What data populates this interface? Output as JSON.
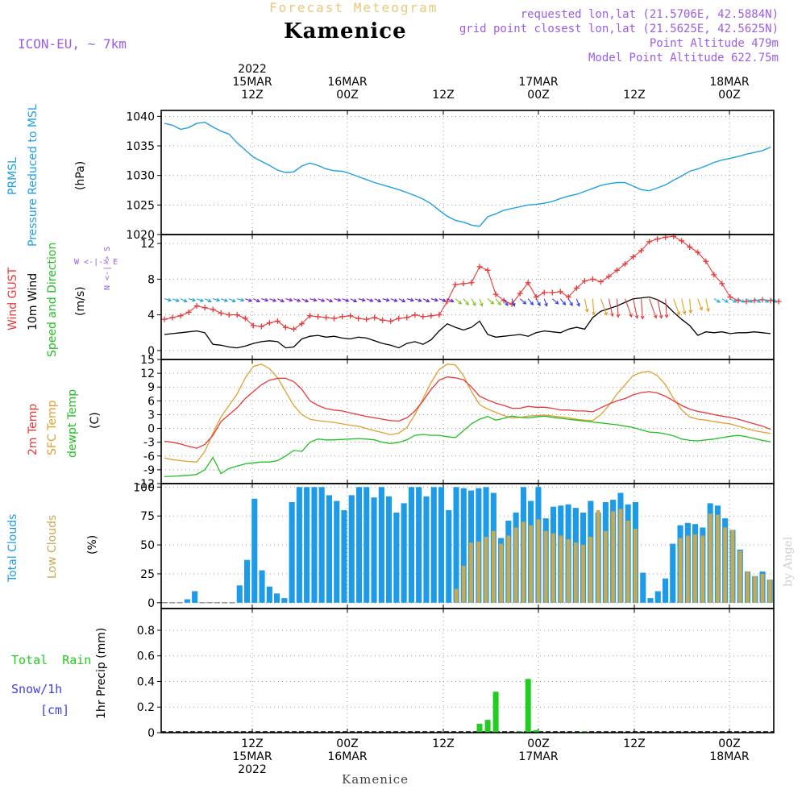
{
  "header": {
    "subtitle": "Forecast Meteogram",
    "title": "Kamenice",
    "model": "ICON-EU, ~ 7km",
    "requested": "requested lon,lat (21.5706E, 42.5884N)",
    "gridpoint": "grid point closest lon,lat (21.5625E, 42.5625N)",
    "point_alt": "Point Altitude 479m",
    "model_alt": "Model Point Altitude 622.75m"
  },
  "footer": {
    "location": "Kamenice",
    "credit": "by Angel"
  },
  "top_axis": [
    {
      "line1": "2022",
      "line2": "15MAR",
      "line3": "12Z"
    },
    {
      "line1": "",
      "line2": "16MAR",
      "line3": "00Z"
    },
    {
      "line1": "",
      "line2": "",
      "line3": "12Z"
    },
    {
      "line1": "",
      "line2": "17MAR",
      "line3": "00Z"
    },
    {
      "line1": "",
      "line2": "",
      "line3": "12Z"
    },
    {
      "line1": "",
      "line2": "18MAR",
      "line3": "00Z"
    }
  ],
  "bottom_axis": [
    {
      "line1": "12Z",
      "line2": "15MAR",
      "line3": "2022"
    },
    {
      "line1": "00Z",
      "line2": "16MAR",
      "line3": ""
    },
    {
      "line1": "12Z",
      "line2": "",
      "line3": ""
    },
    {
      "line1": "00Z",
      "line2": "17MAR",
      "line3": ""
    },
    {
      "line1": "12Z",
      "line2": "",
      "line3": ""
    },
    {
      "line1": "00Z",
      "line2": "18MAR",
      "line3": ""
    }
  ],
  "panel_labels": {
    "pressure": {
      "l1": "PRMSL",
      "l2": "Pressure Reduced to MSL",
      "unit": "(hPa)"
    },
    "wind": {
      "l1": "Wind GUST",
      "l2": "10m Wind",
      "l3": "Speed and Direction",
      "unit": "(m/s)",
      "compass_ns": "N <-|-> S",
      "compass_we": "W <-|-> E"
    },
    "temp": {
      "l1": "2m Temp",
      "l2": "SFC Temp",
      "l3": "dewpt Temp",
      "unit": "(C)"
    },
    "clouds": {
      "l1": "Total Clouds",
      "l2": "Low Clouds",
      "unit": "(%)"
    },
    "precip": {
      "l1": "Total",
      "l1b": "Rain",
      "l2": "Snow/1h",
      "l3": "[cm]",
      "unit": "1hr Precip (mm)"
    }
  },
  "colors": {
    "pressure": "#1ea0e8",
    "gust": "#e83838",
    "wind": "#000000",
    "sfc": "#e0a030",
    "t2m": "#e83838",
    "dewpt": "#20c020",
    "totcloud": "#1e9be8",
    "lowcloud": "#c8a850",
    "rain": "#22cc22",
    "snow": "#4040e0",
    "grid": "#9a9a9a"
  },
  "chart_data": [
    {
      "type": "line",
      "title": "PRMSL Pressure Reduced to MSL",
      "ylabel": "hPa",
      "ylim": [
        1020,
        1041
      ],
      "yticks": [
        1020,
        1025,
        1030,
        1035,
        1040
      ],
      "x_hours_start": 0,
      "series": [
        {
          "name": "PRMSL",
          "values": [
            1038.8,
            1038.5,
            1037.8,
            1038.1,
            1038.8,
            1039.0,
            1038.2,
            1037.5,
            1037.0,
            1035.5,
            1034.3,
            1033.1,
            1032.4,
            1031.7,
            1030.9,
            1030.5,
            1030.6,
            1031.6,
            1032.1,
            1031.7,
            1031.1,
            1030.8,
            1030.7,
            1030.3,
            1029.8,
            1029.3,
            1028.8,
            1028.4,
            1028.0,
            1027.6,
            1027.1,
            1026.6,
            1026.0,
            1025.2,
            1024.1,
            1023.1,
            1022.4,
            1022.1,
            1021.6,
            1021.4,
            1023.0,
            1023.5,
            1024.1,
            1024.4,
            1024.7,
            1025.0,
            1025.1,
            1025.3,
            1025.6,
            1026.1,
            1026.5,
            1026.8,
            1027.3,
            1027.8,
            1028.3,
            1028.6,
            1028.8,
            1028.8,
            1028.2,
            1027.6,
            1027.4,
            1027.9,
            1028.4,
            1029.2,
            1029.9,
            1030.7,
            1031.1,
            1031.6,
            1032.2,
            1032.6,
            1032.9,
            1033.2,
            1033.6,
            1033.9,
            1034.2,
            1034.8
          ]
        }
      ]
    },
    {
      "type": "line",
      "title": "Wind GUST / 10m Wind",
      "ylabel": "m/s",
      "ylim": [
        -1,
        13
      ],
      "yticks": [
        0,
        4,
        8,
        12
      ],
      "series": [
        {
          "name": "Wind GUST",
          "values": [
            3.5,
            3.7,
            3.9,
            4.3,
            5.0,
            4.8,
            4.6,
            4.2,
            4.0,
            4.0,
            3.6,
            2.8,
            2.7,
            3.1,
            3.3,
            2.6,
            2.4,
            3.0,
            3.9,
            3.8,
            3.7,
            3.6,
            3.8,
            3.9,
            3.6,
            3.5,
            3.7,
            3.4,
            3.3,
            3.6,
            3.7,
            4.0,
            3.8,
            3.9,
            4.0,
            5.5,
            7.4,
            7.5,
            7.6,
            9.4,
            9.0,
            6.3,
            5.6,
            5.2,
            6.4,
            7.6,
            6.0,
            6.5,
            6.5,
            6.6,
            6.0,
            7.0,
            7.8,
            8.0,
            7.7,
            8.3,
            9.0,
            9.7,
            10.5,
            11.2,
            12.2,
            12.5,
            12.7,
            12.8,
            12.3,
            11.6,
            11.0,
            10.0,
            8.5,
            7.5,
            6.0,
            5.6,
            5.5,
            5.6,
            5.7,
            5.6,
            5.5
          ]
        },
        {
          "name": "10m Wind",
          "values": [
            1.8,
            1.9,
            2.0,
            2.1,
            2.2,
            2.0,
            0.7,
            0.6,
            0.4,
            0.3,
            0.5,
            0.8,
            1.0,
            1.1,
            1.0,
            0.3,
            0.4,
            1.3,
            1.6,
            1.7,
            1.5,
            1.6,
            1.4,
            1.3,
            1.5,
            1.4,
            1.1,
            0.8,
            0.6,
            0.3,
            0.8,
            1.0,
            0.7,
            1.2,
            2.2,
            3.0,
            2.6,
            2.3,
            2.6,
            3.3,
            1.8,
            1.5,
            1.6,
            1.7,
            1.8,
            1.6,
            2.0,
            2.2,
            2.1,
            2.0,
            2.4,
            2.6,
            2.4,
            3.7,
            4.4,
            4.7,
            5.0,
            5.4,
            5.8,
            5.9,
            6.0,
            5.7,
            5.2,
            4.3,
            3.5,
            2.8,
            1.7,
            2.1,
            2.0,
            2.1,
            1.9,
            2.0,
            2.0,
            2.1,
            2.0,
            1.9
          ]
        }
      ]
    },
    {
      "type": "line",
      "title": "2m Temp / SFC Temp / dewpt Temp",
      "ylabel": "C",
      "ylim": [
        -12,
        15
      ],
      "yticks": [
        -12,
        -9,
        -6,
        -3,
        0,
        3,
        6,
        9,
        12,
        15
      ],
      "series": [
        {
          "name": "2m Temp",
          "values": [
            -2.8,
            -3.0,
            -3.4,
            -3.9,
            -4.3,
            -3.5,
            -1.5,
            1.5,
            3.0,
            4.5,
            6.5,
            8.0,
            9.5,
            10.5,
            10.9,
            10.9,
            10.2,
            8.5,
            6.0,
            5.0,
            4.3,
            4.0,
            3.8,
            3.4,
            3.0,
            2.6,
            2.3,
            2.0,
            1.7,
            1.6,
            2.3,
            3.8,
            6.0,
            8.5,
            10.5,
            11.2,
            11.0,
            10.6,
            9.0,
            7.0,
            6.2,
            5.5,
            5.0,
            4.4,
            4.4,
            4.8,
            4.6,
            4.6,
            4.4,
            4.0,
            4.0,
            3.8,
            3.8,
            3.6,
            4.5,
            5.3,
            6.0,
            6.5,
            7.3,
            7.8,
            8.0,
            7.7,
            7.0,
            6.0,
            5.0,
            4.2,
            3.7,
            3.4,
            3.0,
            2.7,
            2.4,
            2.0,
            1.5,
            1.0,
            0.5,
            -0.2
          ]
        },
        {
          "name": "SFC Temp",
          "values": [
            -6.4,
            -6.8,
            -7.0,
            -7.2,
            -7.3,
            -5.0,
            -1.0,
            2.5,
            5.0,
            7.5,
            11.0,
            13.5,
            14.0,
            13.0,
            11.0,
            8.0,
            5.0,
            3.0,
            2.0,
            1.7,
            1.5,
            1.3,
            1.0,
            0.7,
            0.5,
            0.0,
            -0.5,
            -0.9,
            -1.4,
            -1.0,
            0.2,
            3.0,
            6.5,
            10.0,
            12.8,
            14.0,
            13.8,
            11.5,
            8.0,
            5.2,
            4.2,
            3.5,
            2.8,
            2.3,
            2.4,
            2.7,
            2.8,
            2.9,
            2.7,
            2.5,
            2.3,
            2.0,
            1.8,
            1.7,
            3.0,
            5.0,
            7.5,
            9.5,
            11.5,
            12.2,
            12.4,
            11.5,
            9.5,
            6.5,
            4.0,
            2.5,
            2.0,
            1.8,
            1.5,
            1.2,
            1.0,
            0.5,
            0.0,
            -0.5,
            -0.8,
            -1.1
          ]
        },
        {
          "name": "dewpt Temp",
          "values": [
            -10.5,
            -10.4,
            -10.3,
            -10.2,
            -10.0,
            -9.0,
            -6.3,
            -9.8,
            -8.7,
            -8.2,
            -7.7,
            -7.5,
            -7.3,
            -7.3,
            -7.0,
            -6.0,
            -4.8,
            -5.0,
            -3.0,
            -2.3,
            -2.5,
            -2.5,
            -2.4,
            -2.3,
            -2.2,
            -2.3,
            -2.5,
            -3.0,
            -3.3,
            -3.0,
            -2.5,
            -1.5,
            -1.3,
            -1.5,
            -1.5,
            -1.8,
            -2.0,
            -0.5,
            1.0,
            2.0,
            2.6,
            1.8,
            2.2,
            2.7,
            2.4,
            2.3,
            2.5,
            2.7,
            2.4,
            2.2,
            2.0,
            1.8,
            1.6,
            1.4,
            1.2,
            1.0,
            0.8,
            0.5,
            0.2,
            -0.3,
            -0.8,
            -0.9,
            -1.2,
            -1.6,
            -2.3,
            -2.6,
            -2.7,
            -2.5,
            -2.3,
            -2.0,
            -1.7,
            -1.5,
            -1.8,
            -2.2,
            -2.6,
            -2.9
          ]
        }
      ]
    },
    {
      "type": "bar",
      "title": "Total Clouds / Low Clouds",
      "ylabel": "%",
      "ylim": [
        -5,
        103
      ],
      "yticks": [
        0,
        25,
        50,
        75,
        100
      ],
      "series": [
        {
          "name": "Total Clouds",
          "values": [
            0,
            0,
            0,
            3,
            10,
            0,
            0,
            0,
            0,
            0,
            15,
            37,
            90,
            28,
            14,
            8,
            4,
            87,
            100,
            100,
            100,
            100,
            93,
            88,
            80,
            93,
            100,
            100,
            91,
            100,
            92,
            78,
            86,
            100,
            100,
            92,
            100,
            100,
            80,
            100,
            99,
            97,
            99,
            100,
            95,
            56,
            71,
            78,
            100,
            88,
            100,
            73,
            83,
            84,
            85,
            82,
            78,
            88,
            78,
            87,
            89,
            95,
            85,
            87,
            26,
            4,
            10,
            21,
            51,
            67,
            69,
            68,
            65,
            86,
            84,
            73,
            63,
            46,
            27,
            23,
            27,
            20
          ]
        },
        {
          "name": "Low Clouds",
          "values": [
            0,
            0,
            0,
            0,
            0,
            0,
            0,
            0,
            0,
            0,
            0,
            0,
            0,
            0,
            0,
            0,
            0,
            0,
            0,
            0,
            0,
            0,
            0,
            0,
            0,
            0,
            0,
            0,
            0,
            0,
            0,
            0,
            0,
            0,
            0,
            0,
            0,
            0,
            0,
            12,
            32,
            52,
            53,
            57,
            62,
            51,
            58,
            65,
            70,
            67,
            72,
            62,
            60,
            58,
            55,
            52,
            50,
            57,
            80,
            62,
            79,
            81,
            71,
            64,
            0,
            0,
            0,
            0,
            0,
            56,
            58,
            59,
            58,
            77,
            76,
            65,
            63,
            45,
            27,
            23,
            25,
            20
          ]
        }
      ]
    },
    {
      "type": "bar",
      "title": "1hr Precip",
      "ylabel": "1hr Precip (mm)",
      "ylim": [
        0,
        0.97
      ],
      "yticks": [
        0,
        0.2,
        0.4,
        0.6,
        0.8
      ],
      "yticklabels": [
        "0",
        "0.2",
        "0.4",
        "0.6",
        "0.8"
      ],
      "series": [
        {
          "name": "Total Rain",
          "points": [
            [
              39,
              0.07
            ],
            [
              40,
              0.1
            ],
            [
              41,
              0.32
            ],
            [
              44,
              0.01
            ],
            [
              45,
              0.42
            ],
            [
              46,
              0.02
            ],
            [
              52,
              0.01
            ]
          ]
        }
      ]
    }
  ]
}
